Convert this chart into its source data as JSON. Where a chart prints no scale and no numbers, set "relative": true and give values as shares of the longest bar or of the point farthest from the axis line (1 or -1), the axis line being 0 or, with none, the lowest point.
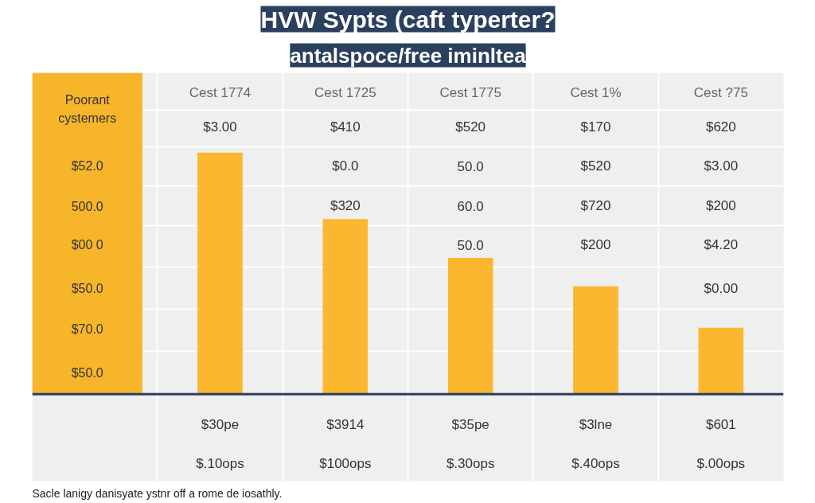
{
  "chart_data": {
    "type": "bar",
    "relative": true,
    "title": "HVW Sypts (caft typerter?",
    "subtitle": "antalspoce/free iminltea",
    "categories": [
      "Cest 1774",
      "Cest 1725",
      "Cest 1775",
      "Cest 1%",
      "Cest ?75"
    ],
    "values": [
      1,
      0.725,
      0.564,
      0.446,
      0.275
    ],
    "color": "#fbb72f",
    "grid": true,
    "annotations": [
      "Poorant cystemers",
      "$3.00",
      "$410",
      "$520",
      "$170",
      "$620",
      "$52.0",
      "$0.0",
      "50.0",
      "$520",
      "$3.00",
      "500.0",
      "$320",
      "60.0",
      "$720",
      "$200",
      "$00 0",
      "50.0",
      "$200",
      "$4.20",
      "$50.0",
      "$0.00",
      "$70.0",
      "$50.0",
      "$30pe",
      "$3914",
      "$35pe",
      "$3lne",
      "$601",
      "$.10ops",
      "$100ops",
      "$.30ops",
      "$.40ops",
      "$.00ops",
      "Sacle lanigy danisyate ystnr off a rome de iosathly."
    ]
  }
}
